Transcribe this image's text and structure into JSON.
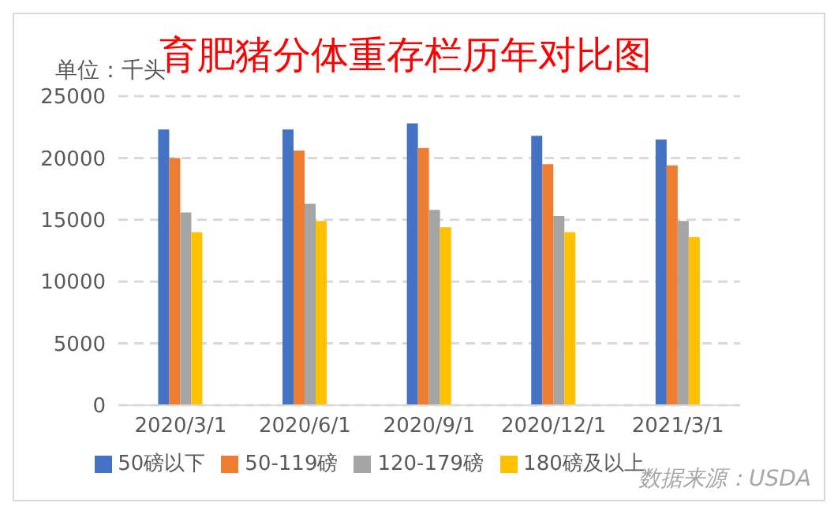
{
  "chart_data": {
    "type": "bar",
    "title": "育肥猪分体重存栏历年对比图",
    "ylabel": "单位：千头",
    "annotations": [
      "数据来源：USDA"
    ],
    "categories": [
      "2020/3/1",
      "2020/6/1",
      "2020/9/1",
      "2020/12/1",
      "2021/3/1"
    ],
    "series": [
      {
        "name": "50磅以下",
        "color": "#4472c4",
        "values": [
          22300,
          22300,
          22800,
          21800,
          21500
        ]
      },
      {
        "name": "50-119磅",
        "color": "#ed7d31",
        "values": [
          20000,
          20600,
          20800,
          19500,
          19400
        ]
      },
      {
        "name": "120-179磅",
        "color": "#a5a5a5",
        "values": [
          15600,
          16300,
          15800,
          15300,
          14900
        ]
      },
      {
        "name": "180磅及以上",
        "color": "#ffc000",
        "values": [
          14000,
          14900,
          14400,
          14000,
          13600
        ]
      }
    ],
    "ylim": [
      0,
      25000
    ],
    "yticks": [
      0,
      5000,
      10000,
      15000,
      20000,
      25000
    ],
    "grid": "y",
    "legend": "bottom"
  }
}
